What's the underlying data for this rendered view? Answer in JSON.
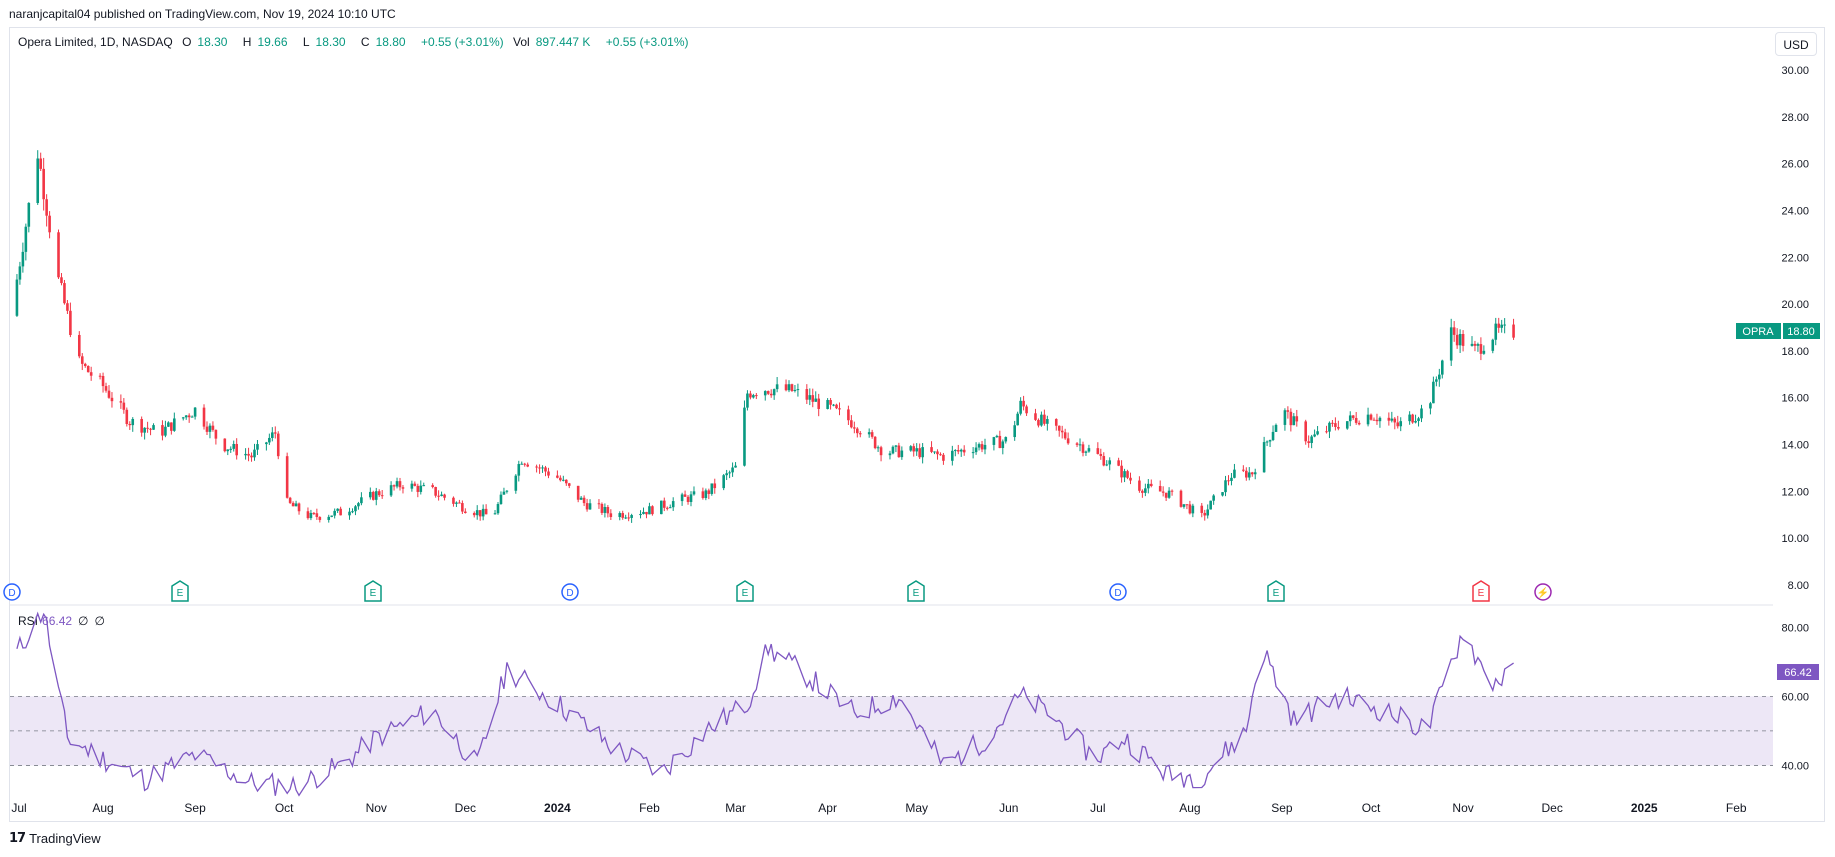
{
  "caption": "naranjcapital04 published on TradingView.com, Nov 19, 2024 10:10 UTC",
  "legend": {
    "symbol": "Opera Limited, 1D, NASDAQ",
    "o_label": "O",
    "o_val": "18.30",
    "h_label": "H",
    "h_val": "19.66",
    "l_label": "L",
    "l_val": "18.30",
    "c_label": "C",
    "c_val": "18.80",
    "change": "+0.55 (+3.01%)",
    "vol_label": "Vol",
    "vol_val": "897.447 K",
    "vol_change": "+0.55 (+3.01%)"
  },
  "currency": "USD",
  "price_badge": {
    "symbol": "OPRA",
    "price": "18.80"
  },
  "rsi_badge": "66.42",
  "rsi_legend": {
    "name": "RSI",
    "value": "66.42",
    "p1": "∅",
    "p2": "∅"
  },
  "brand": "TradingView",
  "colors": {
    "up": "#089981",
    "down": "#f23645",
    "rsi": "#7e57c2",
    "band": "#ede7f6"
  },
  "chart_data": [
    {
      "type": "candlestick",
      "title": "Opera Limited, 1D, NASDAQ",
      "ylim": [
        7,
        31
      ],
      "y_ticks": [
        "30.00",
        "28.00",
        "26.00",
        "24.00",
        "22.00",
        "20.00",
        "18.00",
        "16.00",
        "14.00",
        "12.00",
        "10.00",
        "8.00"
      ],
      "x_tick_labels": [
        "Jul",
        "Aug",
        "Sep",
        "Oct",
        "Nov",
        "Dec",
        "2024",
        "Feb",
        "Mar",
        "Apr",
        "May",
        "Jun",
        "Jul",
        "Aug",
        "Sep",
        "Oct",
        "Nov",
        "Dec",
        "2025",
        "Feb"
      ],
      "dates": [
        "2023-07-01",
        "2023-07-10",
        "2023-07-17",
        "2023-07-24",
        "2023-08-01",
        "2023-08-10",
        "2023-08-20",
        "2023-09-01",
        "2023-09-10",
        "2023-09-20",
        "2023-09-28",
        "2023-10-02",
        "2023-10-10",
        "2023-10-20",
        "2023-11-01",
        "2023-11-10",
        "2023-11-20",
        "2023-12-01",
        "2023-12-10",
        "2023-12-20",
        "2024-01-01",
        "2024-01-10",
        "2024-01-20",
        "2024-02-01",
        "2024-02-10",
        "2024-02-20",
        "2024-03-01",
        "2024-03-05",
        "2024-03-10",
        "2024-03-20",
        "2024-04-01",
        "2024-04-10",
        "2024-04-20",
        "2024-05-01",
        "2024-05-10",
        "2024-05-20",
        "2024-06-01",
        "2024-06-05",
        "2024-06-15",
        "2024-06-25",
        "2024-07-05",
        "2024-07-15",
        "2024-07-25",
        "2024-08-05",
        "2024-08-15",
        "2024-08-22",
        "2024-09-01",
        "2024-09-10",
        "2024-09-20",
        "2024-10-01",
        "2024-10-10",
        "2024-10-20",
        "2024-10-28",
        "2024-11-05",
        "2024-11-12",
        "2024-11-18"
      ],
      "close": [
        19.5,
        26.5,
        21.0,
        17.5,
        16.5,
        15.0,
        14.5,
        15.5,
        14.0,
        13.5,
        14.5,
        11.5,
        10.9,
        11.1,
        11.9,
        12.3,
        12.0,
        11.3,
        10.9,
        13.4,
        12.6,
        11.5,
        11.0,
        11.2,
        11.6,
        11.9,
        13.0,
        16.2,
        16.4,
        16.3,
        15.6,
        14.9,
        13.7,
        13.7,
        13.5,
        13.9,
        14.2,
        15.7,
        14.7,
        14.0,
        13.2,
        12.2,
        11.9,
        10.9,
        12.7,
        12.8,
        15.5,
        14.2,
        14.9,
        15.3,
        14.8,
        15.6,
        18.8,
        18.0,
        18.8,
        18.8
      ],
      "notes": "Daily price approximated by representative points; dates in chart_data.dates"
    },
    {
      "type": "line",
      "title": "RSI",
      "ylim": [
        30,
        85
      ],
      "y_ticks": [
        "80.00",
        "60.00",
        "40.00"
      ],
      "bands": [
        40,
        50,
        60
      ],
      "dates": [
        "2023-07-01",
        "2023-07-12",
        "2023-07-20",
        "2023-08-01",
        "2023-08-15",
        "2023-09-01",
        "2023-09-20",
        "2023-10-05",
        "2023-10-20",
        "2023-11-01",
        "2023-11-20",
        "2023-12-05",
        "2023-12-15",
        "2024-01-01",
        "2024-01-20",
        "2024-02-05",
        "2024-02-20",
        "2024-03-05",
        "2024-03-12",
        "2024-03-25",
        "2024-04-10",
        "2024-04-25",
        "2024-05-10",
        "2024-05-25",
        "2024-06-05",
        "2024-06-15",
        "2024-06-30",
        "2024-07-10",
        "2024-07-25",
        "2024-08-05",
        "2024-08-20",
        "2024-08-25",
        "2024-09-05",
        "2024-09-20",
        "2024-10-05",
        "2024-10-20",
        "2024-11-01",
        "2024-11-10",
        "2024-11-18"
      ],
      "values": [
        70,
        85,
        48,
        42,
        36,
        43,
        35,
        34,
        40,
        48,
        56,
        40,
        68,
        58,
        45,
        38,
        50,
        58,
        74,
        66,
        55,
        60,
        40,
        48,
        60,
        55,
        42,
        48,
        37,
        37,
        50,
        75,
        53,
        60,
        56,
        50,
        79,
        64,
        66.42
      ]
    }
  ]
}
